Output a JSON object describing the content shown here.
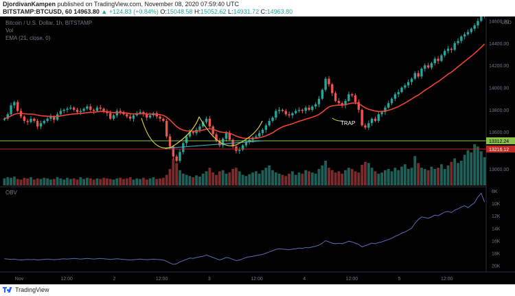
{
  "header": {
    "author": "DjordivanKampen",
    "published_text": "published on TradingView.com, November 08, 2020 07:59:40 UTC",
    "symbol": "BITSTAMP:BTCUSD, 60",
    "last_price": "14963.80",
    "change": "▲ +124.83 (+0.84%)",
    "ohlc": {
      "o_label": "O:",
      "o": "15048.58",
      "h_label": "H:",
      "h": "15052.62",
      "l_label": "L:",
      "l": "14931.72",
      "c_label": "C:",
      "c": "14963.80"
    }
  },
  "legend": {
    "title": "Bitcoin / U.S. Dollar, 1h, BITSTAMP",
    "vol": "Vol",
    "ema": "EMA (21, close, 0)",
    "obv": "OBV"
  },
  "annotation": {
    "trap": "TRAP"
  },
  "price_labels": {
    "green": "13312.24",
    "red": "13216.12",
    "currency": "USD"
  },
  "colors": {
    "up": "#26a69a",
    "down": "#ef5350",
    "ema": "#f44336",
    "obv": "#5b6fb8",
    "cup": "#d4cf3d",
    "trendline": "#3fa7c2",
    "support": "#8bc34a",
    "resistance": "#c62828"
  },
  "footer": {
    "brand": "TradingView"
  },
  "chart_data": [
    {
      "type": "candlestick",
      "title": "Bitcoin / U.S. Dollar, 1h, BITSTAMP",
      "x_ticks": [
        "Nov",
        "12:00",
        "2",
        "12:00",
        "3",
        "12:00",
        "4",
        "12:00",
        "5",
        "12:00"
      ],
      "y_ticks": [
        13600,
        13800,
        14000,
        14200,
        14400,
        14600
      ],
      "ylim": [
        13280,
        14640
      ],
      "close": [
        13720,
        13760,
        13840,
        13870,
        13790,
        13740,
        13700,
        13690,
        13720,
        13700,
        13650,
        13680,
        13700,
        13720,
        13740,
        13710,
        13760,
        13790,
        13800,
        13810,
        13820,
        13800,
        13780,
        13790,
        13810,
        13830,
        13800,
        13790,
        13820,
        13810,
        13790,
        13770,
        13720,
        13750,
        13790,
        13780,
        13760,
        13740,
        13720,
        13750,
        13770,
        13780,
        13760,
        13730,
        13750,
        13770,
        13740,
        13720,
        13700,
        13560,
        13470,
        13380,
        13340,
        13420,
        13500,
        13560,
        13600,
        13590,
        13620,
        13650,
        13690,
        13720,
        13650,
        13580,
        13520,
        13480,
        13540,
        13590,
        13530,
        13470,
        13430,
        13440,
        13480,
        13510,
        13530,
        13550,
        13560,
        13590,
        13620,
        13660,
        13700,
        13730,
        13790,
        13800,
        13790,
        13760,
        13750,
        13770,
        13790,
        13800,
        13790,
        13820,
        13800,
        13830,
        13850,
        13900,
        13980,
        14080,
        14030,
        13950,
        13880,
        13860,
        13840,
        13880,
        13940,
        13930,
        13870,
        13800,
        13660,
        13640,
        13680,
        13720,
        13700,
        13760,
        13780,
        13820,
        13860,
        13900,
        13940,
        13960,
        14000,
        14020,
        14050,
        14080,
        14130,
        14100,
        14170,
        14200,
        14180,
        14220,
        14260,
        14240,
        14290,
        14330,
        14350,
        14340,
        14400,
        14420,
        14460,
        14480,
        14500,
        14530,
        14560,
        14600,
        14640,
        14700
      ],
      "ema_21": [
        13720,
        13730,
        13745,
        13760,
        13766,
        13768,
        13765,
        13762,
        13761,
        13759,
        13752,
        13747,
        13744,
        13742,
        13742,
        13739,
        13741,
        13745,
        13750,
        13755,
        13760,
        13763,
        13765,
        13767,
        13770,
        13775,
        13777,
        13778,
        13782,
        13785,
        13785,
        13784,
        13778,
        13775,
        13775,
        13775,
        13773,
        13770,
        13765,
        13763,
        13764,
        13765,
        13765,
        13762,
        13761,
        13762,
        13760,
        13756,
        13750,
        13733,
        13709,
        13679,
        13649,
        13629,
        13617,
        13611,
        13609,
        13607,
        13608,
        13612,
        13618,
        13627,
        13629,
        13624,
        13614,
        13602,
        13597,
        13596,
        13589,
        13578,
        13564,
        13553,
        13546,
        13543,
        13542,
        13542,
        13544,
        13549,
        13556,
        13566,
        13579,
        13593,
        13613,
        13632,
        13647,
        13657,
        13666,
        13675,
        13686,
        13697,
        13706,
        13716,
        13724,
        13734,
        13744,
        13758,
        13778,
        13805,
        13826,
        13836,
        13840,
        13842,
        13842,
        13846,
        13854,
        13861,
        13862,
        13856,
        13836,
        13818,
        13805,
        13797,
        13788,
        13785,
        13785,
        13789,
        13796,
        13805,
        13817,
        13829,
        13845,
        13862,
        13879,
        13897,
        13917,
        13933,
        13954,
        13976,
        13994,
        14014,
        14036,
        14054,
        14075,
        14098,
        14121,
        14139,
        14163,
        14187,
        14211,
        14235,
        14259,
        14283,
        14308,
        14335,
        14363,
        14393
      ]
    },
    {
      "type": "bar",
      "title": "Vol",
      "y_ticks": [
        13000
      ],
      "values": [
        12,
        14,
        13,
        15,
        11,
        10,
        13,
        12,
        14,
        10,
        12,
        11,
        13,
        12,
        10,
        11,
        14,
        12,
        10,
        13,
        11,
        12,
        10,
        14,
        11,
        13,
        12,
        10,
        12,
        11,
        13,
        12,
        11,
        10,
        12,
        13,
        11,
        12,
        14,
        10,
        12,
        11,
        13,
        10,
        12,
        14,
        11,
        12,
        13,
        18,
        28,
        45,
        38,
        26,
        20,
        18,
        16,
        14,
        17,
        15,
        20,
        24,
        30,
        22,
        18,
        24,
        26,
        20,
        22,
        28,
        30,
        24,
        18,
        16,
        19,
        22,
        24,
        20,
        26,
        30,
        34,
        26,
        22,
        20,
        18,
        16,
        20,
        24,
        18,
        22,
        20,
        26,
        24,
        22,
        20,
        28,
        34,
        42,
        30,
        26,
        22,
        24,
        20,
        26,
        30,
        28,
        24,
        22,
        35,
        40,
        38,
        30,
        24,
        20,
        22,
        26,
        28,
        24,
        30,
        26,
        32,
        36,
        28,
        30,
        50,
        38,
        30,
        28,
        26,
        32,
        28,
        30,
        36,
        28,
        34,
        40,
        46,
        38,
        42,
        52,
        60,
        56,
        70,
        66,
        58,
        48
      ]
    },
    {
      "type": "line",
      "title": "OBV",
      "y_ticks": [
        "8K",
        "10K",
        "12K",
        "14K",
        "16K",
        "18K",
        "20K"
      ],
      "ylim": [
        -20800,
        -7800
      ],
      "values": [
        -18900,
        -18950,
        -19000,
        -18950,
        -19050,
        -19100,
        -19050,
        -19000,
        -19050,
        -19000,
        -19100,
        -19050,
        -19000,
        -18950,
        -19000,
        -19050,
        -19000,
        -18950,
        -18900,
        -18950,
        -18900,
        -18850,
        -18900,
        -18950,
        -18900,
        -18850,
        -18900,
        -18950,
        -18900,
        -18850,
        -18900,
        -18950,
        -19000,
        -18950,
        -18900,
        -18950,
        -19000,
        -19050,
        -19100,
        -19050,
        -19000,
        -18950,
        -19000,
        -19050,
        -19000,
        -18950,
        -19000,
        -19050,
        -19100,
        -19300,
        -19600,
        -19800,
        -19700,
        -19400,
        -19200,
        -19000,
        -18800,
        -18850,
        -18700,
        -18600,
        -18500,
        -18300,
        -18500,
        -18700,
        -18900,
        -19100,
        -18900,
        -18700,
        -18800,
        -19000,
        -19200,
        -19100,
        -18900,
        -18700,
        -18600,
        -18500,
        -18400,
        -18300,
        -18200,
        -18000,
        -17800,
        -17600,
        -17400,
        -17300,
        -17350,
        -17400,
        -17450,
        -17350,
        -17300,
        -17200,
        -17250,
        -17100,
        -17150,
        -17000,
        -16900,
        -16700,
        -16400,
        -16000,
        -16200,
        -16400,
        -16500,
        -16400,
        -16500,
        -16300,
        -16100,
        -16200,
        -16400,
        -16600,
        -17000,
        -16800,
        -16600,
        -16400,
        -16500,
        -16300,
        -16200,
        -16000,
        -15800,
        -15600,
        -15300,
        -15100,
        -14800,
        -14600,
        -14300,
        -14000,
        -13200,
        -12600,
        -12200,
        -12300,
        -12400,
        -12200,
        -11900,
        -12000,
        -11700,
        -11400,
        -11300,
        -11500,
        -11100,
        -10900,
        -10600,
        -10400,
        -10700,
        -10300,
        -9900,
        -9000,
        -8400,
        -9800
      ]
    }
  ]
}
